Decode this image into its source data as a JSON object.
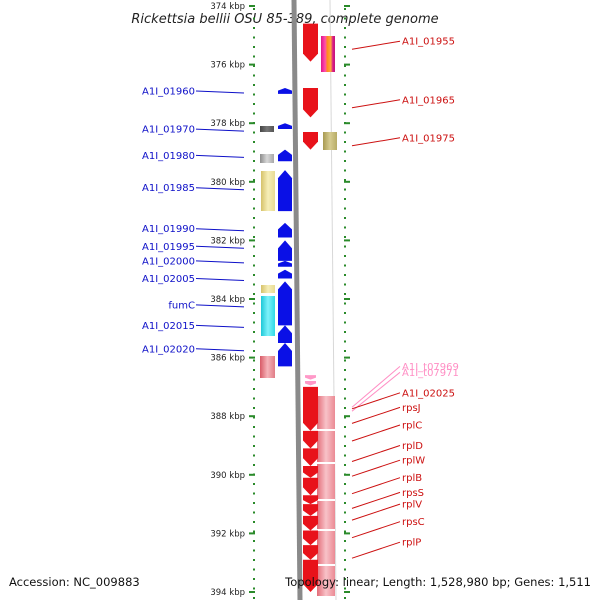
{
  "title": "Rickettsia bellii OSU 85-389, complete genome",
  "accession_text": "Accession: NC_009883",
  "summary_text": "Topology: linear; Length: 1,528,980 bp; Genes: 1,511",
  "axis": {
    "start_kbp": 374,
    "end_kbp": 394,
    "tick_labels": [
      {
        "kbp": 374,
        "text": "374 kbp"
      },
      {
        "kbp": 376,
        "text": "376 kbp"
      },
      {
        "kbp": 378,
        "text": "378 kbp"
      },
      {
        "kbp": 380,
        "text": "380 kbp"
      },
      {
        "kbp": 382,
        "text": "382 kbp"
      },
      {
        "kbp": 384,
        "text": "384 kbp"
      },
      {
        "kbp": 386,
        "text": "386 kbp"
      },
      {
        "kbp": 388,
        "text": "388 kbp"
      },
      {
        "kbp": 390,
        "text": "390 kbp"
      },
      {
        "kbp": 392,
        "text": "392 kbp"
      },
      {
        "kbp": 394,
        "text": "394 kbp"
      }
    ]
  },
  "colors": {
    "minus_gene": "#0a10e6",
    "plus_gene": "#e8121a",
    "plus_gene_light": "#f0808c",
    "trna": "#ff99c8",
    "backbone": "#888888",
    "tick": "#2a8a2a",
    "minus_label": "#0e10c8",
    "plus_label": "#cc1010",
    "trna_label": "#ff8ec4"
  },
  "minus_strand_labels": [
    {
      "text": "A1I_01960",
      "kbp": 376.9
    },
    {
      "text": "A1I_01970",
      "kbp": 378.2
    },
    {
      "text": "A1I_01980",
      "kbp": 379.1
    },
    {
      "text": "A1I_01985",
      "kbp": 380.2
    },
    {
      "text": "A1I_01990",
      "kbp": 381.6
    },
    {
      "text": "A1I_01995",
      "kbp": 382.2
    },
    {
      "text": "A1I_02000",
      "kbp": 382.7
    },
    {
      "text": "A1I_02005",
      "kbp": 383.3
    },
    {
      "text": "fumC",
      "kbp": 384.2
    },
    {
      "text": "A1I_02015",
      "kbp": 384.9
    },
    {
      "text": "A1I_02020",
      "kbp": 385.7
    }
  ],
  "plus_strand_labels": [
    {
      "text": "A1I_01955",
      "kbp": 375.2
    },
    {
      "text": "A1I_01965",
      "kbp": 377.2
    },
    {
      "text": "A1I_01975",
      "kbp": 378.5
    },
    {
      "text": "A1I_t07969",
      "kbp": 386.3,
      "kind": "trna"
    },
    {
      "text": "A1I_t07971",
      "kbp": 386.5,
      "kind": "trna"
    },
    {
      "text": "A1I_02025",
      "kbp": 387.2
    },
    {
      "text": "rpsJ",
      "kbp": 387.7
    },
    {
      "text": "rplC",
      "kbp": 388.3
    },
    {
      "text": "rplD",
      "kbp": 389.0
    },
    {
      "text": "rplW",
      "kbp": 389.5
    },
    {
      "text": "rplB",
      "kbp": 390.1
    },
    {
      "text": "rpsS",
      "kbp": 390.6
    },
    {
      "text": "rplV",
      "kbp": 391.0
    },
    {
      "text": "rpsC",
      "kbp": 391.6
    },
    {
      "text": "rplP",
      "kbp": 392.3
    }
  ],
  "minus_genes": [
    {
      "start": 376.8,
      "end": 377.0
    },
    {
      "start": 378.0,
      "end": 378.2
    },
    {
      "start": 378.9,
      "end": 379.3
    },
    {
      "start": 379.6,
      "end": 381.0
    },
    {
      "start": 381.4,
      "end": 381.9
    },
    {
      "start": 382.0,
      "end": 382.7
    },
    {
      "start": 382.7,
      "end": 382.9
    },
    {
      "start": 383.0,
      "end": 383.3
    },
    {
      "start": 383.4,
      "end": 384.9
    },
    {
      "start": 384.9,
      "end": 385.5
    },
    {
      "start": 385.5,
      "end": 386.3
    }
  ],
  "plus_genes": [
    {
      "start": 374.6,
      "end": 375.9
    },
    {
      "start": 376.8,
      "end": 377.8
    },
    {
      "start": 378.3,
      "end": 378.9
    },
    {
      "start": 387.0,
      "end": 388.5
    },
    {
      "start": 388.5,
      "end": 389.1
    },
    {
      "start": 389.1,
      "end": 389.7
    },
    {
      "start": 389.7,
      "end": 390.1
    },
    {
      "start": 390.1,
      "end": 390.7
    },
    {
      "start": 390.7,
      "end": 391.0
    },
    {
      "start": 391.0,
      "end": 391.4
    },
    {
      "start": 391.4,
      "end": 391.9
    },
    {
      "start": 391.9,
      "end": 392.4
    },
    {
      "start": 392.4,
      "end": 392.9
    },
    {
      "start": 392.9,
      "end": 394.0
    }
  ],
  "trna_genes": [
    {
      "start": 386.6,
      "end": 386.75
    },
    {
      "start": 386.8,
      "end": 386.95
    }
  ]
}
